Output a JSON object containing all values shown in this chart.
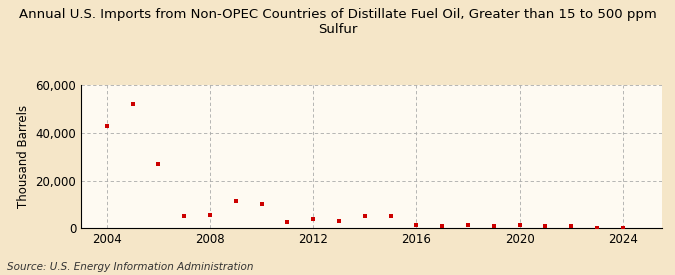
{
  "title": "Annual U.S. Imports from Non-OPEC Countries of Distillate Fuel Oil, Greater than 15 to 500 ppm\nSulfur",
  "ylabel": "Thousand Barrels",
  "source": "Source: U.S. Energy Information Administration",
  "background_color": "#f5e6c8",
  "plot_background_color": "#fefaf2",
  "marker_color": "#cc0000",
  "years": [
    2004,
    2005,
    2006,
    2007,
    2008,
    2009,
    2010,
    2011,
    2012,
    2013,
    2014,
    2015,
    2016,
    2017,
    2018,
    2019,
    2020,
    2021,
    2022,
    2023,
    2024
  ],
  "values": [
    43000,
    52000,
    27000,
    5000,
    5500,
    11500,
    10000,
    2500,
    4000,
    3000,
    5000,
    5000,
    1500,
    1000,
    1500,
    1000,
    1500,
    1000,
    1000,
    200,
    200
  ],
  "ylim": [
    0,
    60000
  ],
  "yticks": [
    0,
    20000,
    40000,
    60000
  ],
  "xlim": [
    2003.0,
    2025.5
  ],
  "xticks": [
    2004,
    2008,
    2012,
    2016,
    2020,
    2024
  ],
  "grid_color": "#aaaaaa",
  "title_fontsize": 9.5,
  "axis_fontsize": 8.5,
  "source_fontsize": 7.5
}
